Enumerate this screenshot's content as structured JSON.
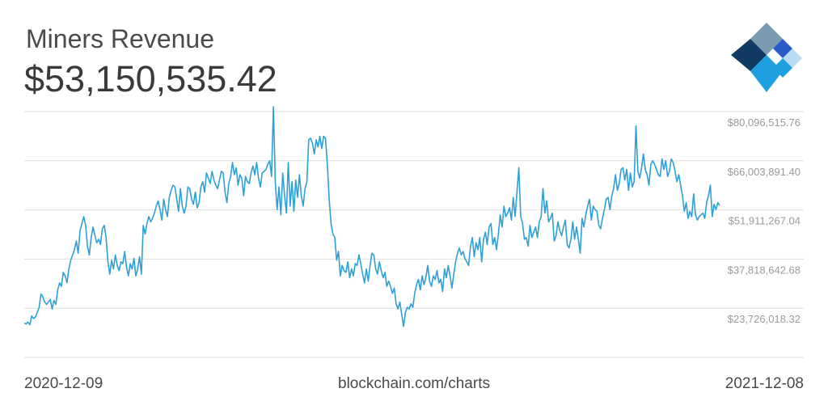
{
  "header": {
    "title": "Miners Revenue",
    "value": "$53,150,535.42"
  },
  "footer": {
    "date_start": "2020-12-09",
    "source": "blockchain.com/charts",
    "date_end": "2021-12-08"
  },
  "colors": {
    "line": "#2ea0d8",
    "logo_dark": "#123b64",
    "logo_blue": "#1e9fe0",
    "logo_royal": "#2b5bc7",
    "logo_slate": "#7a9bb0",
    "logo_light": "#b8dcef"
  },
  "logo": {
    "icon": "blockchain-logo-icon"
  },
  "chart_data": {
    "type": "line",
    "title": "Miners Revenue",
    "xlabel": "",
    "ylabel": "",
    "x_range": [
      "2020-12-09",
      "2021-12-08"
    ],
    "ylim": [
      9633393.96,
      80096515.76
    ],
    "yticks": [
      80096515.76,
      66003891.4,
      51911267.04,
      37818642.68,
      23726018.32
    ],
    "ytick_labels": [
      "$80,096,515.76",
      "$66,003,891.40",
      "$51,911,267.04",
      "$37,818,642.68",
      "$23,726,018.32"
    ],
    "grid": true,
    "legend": "none",
    "series": [
      {
        "values": [
          19.5,
          19.2,
          19.8,
          19.0,
          21.5,
          20.8,
          21.2,
          22.5,
          24.0,
          27.8,
          27.0,
          25.5,
          24.8,
          25.5,
          26.2,
          23.5,
          26.0,
          24.8,
          29.0,
          31.0,
          30.0,
          34.0,
          33.0,
          31.0,
          35.0,
          37.5,
          39.0,
          40.5,
          43.0,
          39.5,
          46.0,
          48.0,
          50.0,
          47.5,
          41.5,
          39.0,
          44.0,
          47.0,
          44.5,
          42.5,
          43.5,
          42.0,
          46.5,
          47.5,
          44.0,
          37.0,
          33.5,
          37.5,
          35.0,
          39.0,
          36.0,
          34.5,
          37.0,
          36.5,
          40.0,
          35.5,
          33.0,
          36.5,
          35.0,
          38.0,
          33.0,
          35.0,
          38.5,
          33.5,
          47.5,
          45.0,
          48.0,
          50.0,
          48.5,
          49.5,
          51.0,
          53.0,
          54.5,
          52.0,
          49.0,
          55.0,
          52.0,
          50.0,
          55.5,
          57.5,
          59.0,
          58.5,
          55.0,
          51.5,
          58.0,
          53.0,
          51.0,
          53.0,
          58.5,
          58.0,
          55.0,
          53.5,
          57.0,
          52.5,
          54.0,
          58.5,
          60.0,
          57.0,
          62.5,
          61.0,
          59.5,
          63.0,
          60.5,
          59.0,
          58.0,
          60.5,
          63.0,
          62.5,
          57.0,
          54.0,
          59.5,
          61.5,
          65.5,
          62.0,
          64.0,
          59.0,
          62.0,
          61.0,
          56.0,
          61.5,
          60.0,
          59.5,
          62.5,
          64.5,
          62.0,
          65.5,
          61.0,
          58.5,
          62.5,
          63.0,
          63.5,
          65.0,
          66.0,
          61.5,
          81.5,
          60.0,
          52.0,
          58.5,
          50.5,
          62.5,
          56.0,
          51.0,
          65.5,
          53.0,
          60.0,
          51.5,
          60.5,
          55.5,
          62.0,
          56.0,
          53.0,
          58.0,
          60.0,
          72.0,
          72.5,
          71.0,
          68.0,
          72.0,
          70.0,
          73.0,
          69.5,
          73.0,
          72.5,
          65.0,
          55.0,
          48.0,
          45.0,
          44.0,
          37.5,
          40.0,
          33.0,
          36.0,
          34.5,
          34.0,
          37.0,
          32.5,
          35.0,
          33.0,
          36.5,
          36.0,
          39.0,
          36.5,
          33.5,
          31.0,
          35.0,
          31.5,
          36.0,
          39.5,
          39.0,
          35.0,
          33.5,
          37.0,
          34.5,
          32.5,
          34.0,
          30.0,
          31.5,
          30.0,
          28.0,
          29.5,
          25.0,
          23.5,
          25.5,
          22.0,
          18.5,
          22.5,
          24.0,
          23.5,
          25.0,
          24.0,
          28.0,
          30.5,
          32.0,
          29.0,
          33.0,
          30.5,
          32.5,
          36.0,
          31.5,
          30.0,
          33.0,
          32.0,
          34.5,
          31.0,
          32.0,
          28.5,
          35.0,
          32.5,
          36.0,
          33.0,
          29.5,
          33.5,
          37.0,
          39.5,
          41.0,
          39.0,
          40.0,
          38.0,
          37.0,
          36.0,
          41.5,
          44.0,
          38.5,
          42.5,
          40.5,
          44.0,
          37.0,
          43.5,
          45.5,
          42.0,
          47.0,
          48.0,
          42.0,
          44.0,
          40.5,
          45.0,
          50.5,
          47.0,
          53.0,
          50.0,
          51.0,
          52.5,
          49.0,
          55.5,
          50.0,
          57.0,
          64.0,
          50.0,
          48.0,
          43.5,
          44.0,
          41.5,
          47.5,
          44.0,
          45.5,
          47.0,
          44.0,
          48.5,
          50.0,
          58.0,
          51.0,
          54.5,
          48.5,
          49.5,
          51.0,
          43.0,
          44.5,
          48.5,
          46.0,
          44.5,
          47.0,
          49.0,
          42.0,
          41.0,
          43.5,
          48.5,
          43.5,
          47.0,
          43.5,
          39.5,
          49.5,
          47.0,
          50.5,
          53.0,
          55.0,
          49.0,
          53.0,
          52.0,
          51.5,
          47.5,
          46.5,
          49.5,
          52.0,
          55.0,
          55.5,
          52.0,
          56.0,
          58.0,
          62.0,
          57.5,
          59.5,
          63.5,
          64.0,
          60.5,
          63.5,
          57.5,
          62.5,
          58.5,
          60.0,
          76.0,
          63.0,
          61.0,
          64.0,
          68.0,
          63.5,
          62.0,
          59.0,
          65.0,
          66.0,
          65.0,
          63.5,
          62.0,
          61.5,
          66.5,
          63.5,
          66.0,
          61.5,
          63.0,
          66.5,
          65.5,
          63.0,
          60.0,
          62.0,
          59.0,
          56.0,
          51.5,
          54.0,
          49.5,
          51.5,
          50.0,
          56.5,
          50.5,
          49.0,
          50.0,
          50.5,
          51.0,
          49.5,
          54.0,
          56.0,
          59.0,
          50.0,
          53.5,
          52.0,
          54.0,
          53.15
        ]
      }
    ]
  }
}
